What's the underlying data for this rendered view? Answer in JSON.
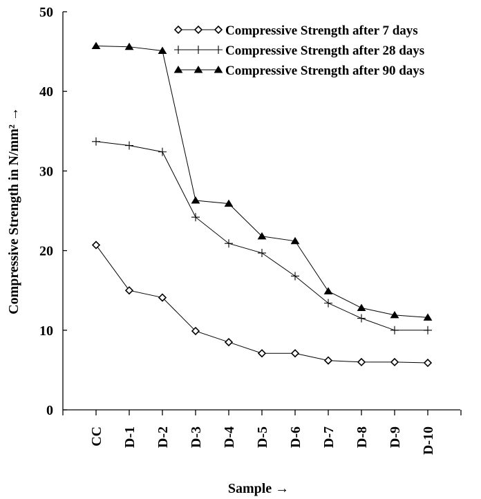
{
  "chart_data": {
    "type": "line",
    "categories": [
      "CC",
      "D-1",
      "D-2",
      "D-3",
      "D-4",
      "D-5",
      "D-6",
      "D-7",
      "D-8",
      "D-9",
      "D-10"
    ],
    "series": [
      {
        "name": "Compressive Strength after 7 days",
        "marker": "diamond",
        "values": [
          20.7,
          15.0,
          14.1,
          9.9,
          8.5,
          7.1,
          7.1,
          6.2,
          6.0,
          6.0,
          5.9
        ]
      },
      {
        "name": "Compressive Strength after 28 days",
        "marker": "plus",
        "values": [
          33.7,
          33.2,
          32.4,
          24.2,
          20.9,
          19.7,
          16.8,
          13.4,
          11.5,
          10.0,
          10.0
        ]
      },
      {
        "name": "Compressive Strength after 90 days",
        "marker": "triangle",
        "values": [
          45.7,
          45.6,
          45.1,
          26.3,
          25.9,
          21.8,
          21.2,
          14.9,
          12.8,
          11.9,
          11.6
        ]
      }
    ],
    "title": "",
    "xlabel": "Sample →",
    "ylabel": "Compressive Strength in N/mm² →",
    "ylim": [
      0,
      50
    ],
    "yticks": [
      "0",
      "10",
      "20",
      "30",
      "40",
      "50"
    ],
    "grid": false,
    "legend_position": "top-right",
    "line_color": "#000000"
  }
}
